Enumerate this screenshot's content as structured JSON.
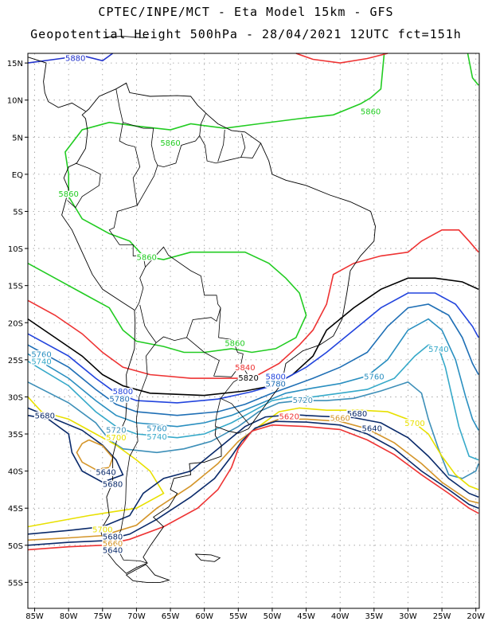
{
  "header": {
    "line1": "CPTEC/INPE/MCT -  Eta Model 15km - GFS",
    "line2": "Geopotential Height 500hPa - 28/04/2021 12UTC fct=151h"
  },
  "axes": {
    "lat_labels": [
      "15N",
      "10N",
      "5N",
      "EQ",
      "5S",
      "10S",
      "15S",
      "20S",
      "25S",
      "30S",
      "35S",
      "40S",
      "45S",
      "50S",
      "55S"
    ],
    "lon_labels": [
      "85W",
      "80W",
      "75W",
      "70W",
      "65W",
      "60W",
      "55W",
      "50W",
      "45W",
      "40W",
      "35W",
      "30W",
      "25W",
      "20W"
    ]
  },
  "contours": [
    {
      "level": "5880",
      "color": "#2233cc"
    },
    {
      "level": "5860",
      "color": "#22cc22"
    },
    {
      "level": "5840",
      "color": "#ee3333"
    },
    {
      "level": "5820",
      "color": "#000000"
    },
    {
      "level": "5800",
      "color": "#2244dd"
    },
    {
      "level": "5780",
      "color": "#1f6fb5"
    },
    {
      "level": "5760",
      "color": "#2a8fc0"
    },
    {
      "level": "5740",
      "color": "#36a9c9"
    },
    {
      "level": "5720",
      "color": "#3d8fb8"
    },
    {
      "level": "5700",
      "color": "#e8e000"
    },
    {
      "level": "5680",
      "color": "#0a2a6a"
    },
    {
      "level": "5660",
      "color": "#d4952a"
    },
    {
      "level": "5640",
      "color": "#0a2a6a"
    },
    {
      "level": "5620",
      "color": "#ee3333"
    }
  ],
  "labels": [
    {
      "text": "5880",
      "color": "#2233cc",
      "lon": -79,
      "lat": 15.7
    },
    {
      "text": "5860",
      "color": "#22cc22",
      "lon": -35.5,
      "lat": 8.5
    },
    {
      "text": "5860",
      "color": "#22cc22",
      "lon": -65,
      "lat": 4.3
    },
    {
      "text": "5860",
      "color": "#22cc22",
      "lon": -80,
      "lat": -2.6
    },
    {
      "text": "5860",
      "color": "#22cc22",
      "lon": -68.5,
      "lat": -11.1
    },
    {
      "text": "5860",
      "color": "#22cc22",
      "lon": -55.5,
      "lat": -22.7
    },
    {
      "text": "5840",
      "color": "#ee3333",
      "lon": -54,
      "lat": -26
    },
    {
      "text": "5820",
      "color": "#000000",
      "lon": -53.5,
      "lat": -27.4
    },
    {
      "text": "5800",
      "color": "#2244dd",
      "lon": -49.5,
      "lat": -27.2
    },
    {
      "text": "5780",
      "color": "#1f6fb5",
      "lon": -49.5,
      "lat": -28.2
    },
    {
      "text": "5760",
      "color": "#2a8fc0",
      "lon": -35,
      "lat": -27.2
    },
    {
      "text": "5740",
      "color": "#36a9c9",
      "lon": -25.5,
      "lat": -23.5
    },
    {
      "text": "5720",
      "color": "#3d8fb8",
      "lon": -45.5,
      "lat": -30.4
    },
    {
      "text": "5700",
      "color": "#e8e000",
      "lon": -29,
      "lat": -33.5
    },
    {
      "text": "5680",
      "color": "#0a2a6a",
      "lon": -37.5,
      "lat": -32.2
    },
    {
      "text": "5660",
      "color": "#d4952a",
      "lon": -40,
      "lat": -32.8
    },
    {
      "text": "5640",
      "color": "#0a2a6a",
      "lon": -35.3,
      "lat": -34.2
    },
    {
      "text": "5620",
      "color": "#ee3333",
      "lon": -47.5,
      "lat": -32.6
    },
    {
      "text": "5760",
      "color": "#2a8fc0",
      "lon": -84,
      "lat": -24.2
    },
    {
      "text": "5740",
      "color": "#36a9c9",
      "lon": -84,
      "lat": -25.2
    },
    {
      "text": "5680",
      "color": "#0a2a6a",
      "lon": -83.5,
      "lat": -32.5
    },
    {
      "text": "5800",
      "color": "#2244dd",
      "lon": -72,
      "lat": -29.2
    },
    {
      "text": "5780",
      "color": "#1f6fb5",
      "lon": -72.5,
      "lat": -30.2
    },
    {
      "text": "5760",
      "color": "#2a8fc0",
      "lon": -67,
      "lat": -34.2
    },
    {
      "text": "5740",
      "color": "#36a9c9",
      "lon": -67,
      "lat": -35.3
    },
    {
      "text": "5720",
      "color": "#3d8fb8",
      "lon": -73,
      "lat": -34.4
    },
    {
      "text": "5700",
      "color": "#e8e000",
      "lon": -73,
      "lat": -35.4
    },
    {
      "text": "5640",
      "color": "#0a2a6a",
      "lon": -74.5,
      "lat": -40.1
    },
    {
      "text": "5680",
      "color": "#0a2a6a",
      "lon": -73.5,
      "lat": -41.7
    },
    {
      "text": "5700",
      "color": "#e8e000",
      "lon": -75,
      "lat": -47.8
    },
    {
      "text": "5680",
      "color": "#0a2a6a",
      "lon": -73.5,
      "lat": -48.8
    },
    {
      "text": "5660",
      "color": "#d4952a",
      "lon": -73.5,
      "lat": -49.7
    },
    {
      "text": "5640",
      "color": "#0a2a6a",
      "lon": -73.5,
      "lat": -50.6
    }
  ]
}
